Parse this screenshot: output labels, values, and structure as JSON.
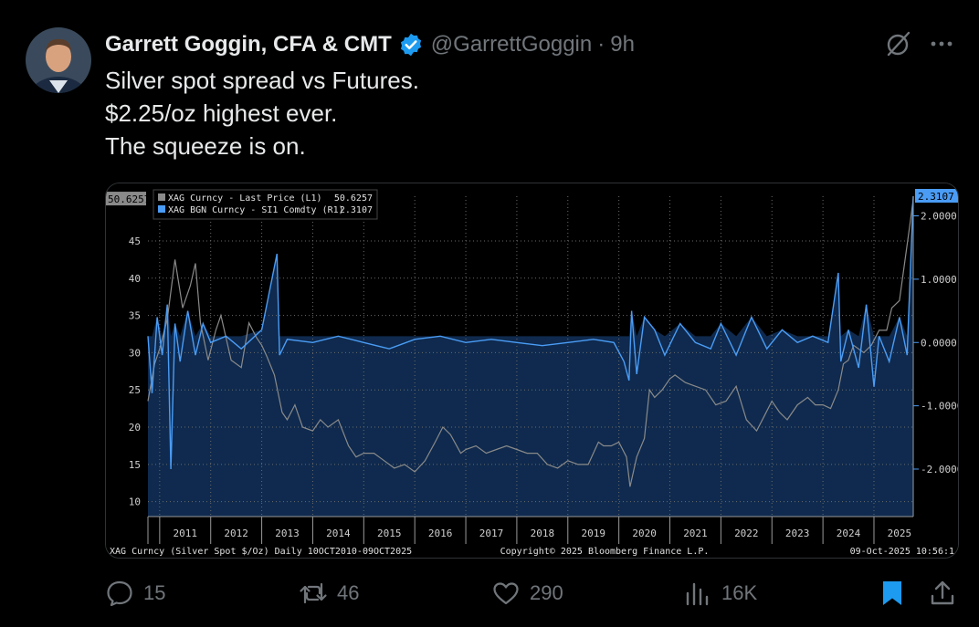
{
  "author": {
    "name": "Garrett Goggin, CFA & CMT",
    "handle": "@GarrettGoggin",
    "separator": "·",
    "time": "9h"
  },
  "tweet": {
    "lines": [
      "Silver spot spread vs Futures.",
      "$2.25/oz highest ever.",
      "The squeeze is on."
    ]
  },
  "actions": {
    "replies": "15",
    "reposts": "46",
    "likes": "290",
    "views": "16K"
  },
  "colors": {
    "accent": "#1d9bf0",
    "bookmark": "#1d9bf0",
    "muted": "#71767b",
    "series_last": "#8a8a8a",
    "series_spread": "#4a9cf5",
    "area_fill": "#0f2a4e"
  },
  "chart_data": {
    "type": "line",
    "legend": [
      {
        "name": "XAG Curncy - Last Price (L1)",
        "value": "50.6257",
        "color": "#8a8a8a"
      },
      {
        "name": "XAG BGN Curncy - SI1 Comdty (R1)",
        "value": "2.3107",
        "color": "#4a9cf5"
      }
    ],
    "left_badge": "50.6257",
    "right_badge": "2.3107",
    "left_ticks": [
      "10",
      "15",
      "20",
      "25",
      "30",
      "35",
      "40",
      "45"
    ],
    "left_ylim": [
      8,
      51
    ],
    "right_ticks": [
      "-2.0000",
      "-1.0000",
      "0.0000",
      "1.0000",
      "2.0000"
    ],
    "right_ylim": [
      -2.75,
      2.3107
    ],
    "x_ticks": [
      "2011",
      "2012",
      "2013",
      "2014",
      "2015",
      "2016",
      "2017",
      "2018",
      "2019",
      "2020",
      "2021",
      "2022",
      "2023",
      "2024",
      "2025"
    ],
    "xlim": [
      2010.77,
      2025.77
    ],
    "footer_left": "XAG Curncy (Silver Spot  $/Oz) Daily 10OCT2010-09OCT2025",
    "footer_center": "Copyright© 2025 Bloomberg Finance L.P.",
    "footer_right": "09-Oct-2025 10:56:1",
    "series": [
      {
        "name": "XAG Curncy - Last Price (L1)",
        "axis": "left",
        "x": [
          2010.77,
          2010.9,
          2011.0,
          2011.15,
          2011.3,
          2011.45,
          2011.6,
          2011.7,
          2011.8,
          2011.95,
          2012.1,
          2012.2,
          2012.4,
          2012.6,
          2012.75,
          2012.9,
          2013.0,
          2013.1,
          2013.25,
          2013.4,
          2013.5,
          2013.65,
          2013.8,
          2014.0,
          2014.15,
          2014.3,
          2014.5,
          2014.7,
          2014.85,
          2015.0,
          2015.2,
          2015.4,
          2015.6,
          2015.8,
          2016.0,
          2016.2,
          2016.4,
          2016.55,
          2016.7,
          2016.9,
          2017.0,
          2017.2,
          2017.4,
          2017.6,
          2017.8,
          2018.0,
          2018.2,
          2018.4,
          2018.6,
          2018.8,
          2019.0,
          2019.2,
          2019.4,
          2019.6,
          2019.7,
          2019.85,
          2020.0,
          2020.15,
          2020.22,
          2020.35,
          2020.5,
          2020.6,
          2020.7,
          2020.85,
          2021.0,
          2021.1,
          2021.3,
          2021.5,
          2021.7,
          2021.9,
          2022.1,
          2022.3,
          2022.5,
          2022.7,
          2022.85,
          2023.0,
          2023.15,
          2023.3,
          2023.5,
          2023.7,
          2023.85,
          2024.0,
          2024.15,
          2024.3,
          2024.4,
          2024.5,
          2024.6,
          2024.8,
          2024.95,
          2025.1,
          2025.25,
          2025.35,
          2025.5,
          2025.6,
          2025.7,
          2025.77
        ],
        "y": [
          23.5,
          28.5,
          30.5,
          34.5,
          42.5,
          36,
          39,
          42,
          34,
          29,
          33,
          35,
          29,
          28,
          34,
          32,
          31,
          29.5,
          27,
          22,
          21,
          23,
          20,
          19.5,
          21,
          20,
          21,
          17.5,
          16,
          16.5,
          16.5,
          15.5,
          14.5,
          15,
          14,
          15.5,
          18,
          20,
          19,
          16.5,
          17,
          17.5,
          16.5,
          17,
          17.5,
          17,
          16.5,
          16.5,
          15,
          14.5,
          15.5,
          15,
          15,
          18,
          17.5,
          17.5,
          18,
          16,
          12,
          16,
          18.5,
          25,
          24,
          25,
          26.5,
          27,
          26,
          25.5,
          25,
          23,
          23.5,
          25.5,
          21,
          19.5,
          21.5,
          23.5,
          22,
          21,
          23,
          24,
          23,
          23,
          22.5,
          25,
          28.5,
          29,
          31,
          30,
          31,
          33,
          33,
          36,
          37,
          42,
          47,
          50.6257
        ]
      },
      {
        "name": "XAG BGN Curncy - SI1 Comdty (R1)",
        "axis": "right",
        "x": [
          2010.77,
          2010.85,
          2010.95,
          2011.05,
          2011.15,
          2011.22,
          2011.3,
          2011.4,
          2011.55,
          2011.7,
          2011.85,
          2012.0,
          2012.3,
          2012.6,
          2013.0,
          2013.3,
          2013.35,
          2013.5,
          2014.0,
          2014.5,
          2015.0,
          2015.5,
          2016.0,
          2016.5,
          2017.0,
          2017.5,
          2018.0,
          2018.5,
          2019.0,
          2019.5,
          2019.9,
          2020.1,
          2020.2,
          2020.25,
          2020.35,
          2020.5,
          2020.7,
          2020.9,
          2021.2,
          2021.5,
          2021.8,
          2022.0,
          2022.3,
          2022.6,
          2022.9,
          2023.2,
          2023.5,
          2023.8,
          2024.1,
          2024.3,
          2024.35,
          2024.5,
          2024.7,
          2024.85,
          2025.0,
          2025.1,
          2025.3,
          2025.5,
          2025.65,
          2025.77
        ],
        "y": [
          0.1,
          -0.8,
          0.4,
          -0.2,
          0.6,
          -2.0,
          0.3,
          -0.3,
          0.5,
          -0.2,
          0.3,
          0.0,
          0.1,
          -0.1,
          0.2,
          1.4,
          -0.2,
          0.05,
          0.0,
          0.1,
          0.0,
          -0.1,
          0.05,
          0.1,
          0.0,
          0.05,
          0.0,
          -0.05,
          0.0,
          0.05,
          0.0,
          -0.3,
          -0.6,
          0.5,
          -0.5,
          0.4,
          0.2,
          -0.2,
          0.3,
          0.0,
          -0.1,
          0.3,
          -0.2,
          0.4,
          -0.1,
          0.2,
          0.0,
          0.1,
          0.0,
          1.1,
          -0.3,
          0.2,
          -0.4,
          0.6,
          -0.7,
          0.1,
          -0.3,
          0.4,
          -0.2,
          2.3107
        ]
      }
    ]
  }
}
